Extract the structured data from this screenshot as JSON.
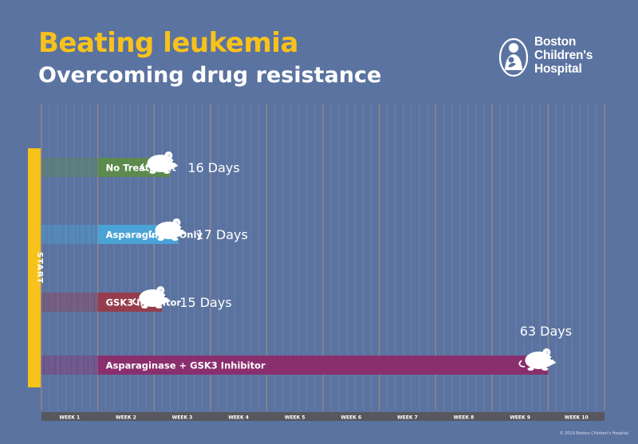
{
  "header": {
    "title": "Beating leukemia",
    "subtitle": "Overcoming drug resistance"
  },
  "logo": {
    "lines": [
      "Boston",
      "Children's",
      "Hospital"
    ]
  },
  "copyright": "© 2019 Boston Children's Hospital",
  "colors": {
    "background": "#5b73a0",
    "title": "#f7c21b",
    "start_bar": "#f7c21b",
    "axis_band": "#58575d"
  },
  "chart_data": {
    "type": "bar",
    "orientation": "horizontal",
    "start_label": "START",
    "x_unit": "weeks",
    "xlim": [
      0,
      10
    ],
    "week_labels": [
      "WEEK 1",
      "WEEK 2",
      "WEEK 3",
      "WEEK 4",
      "WEEK 5",
      "WEEK 6",
      "WEEK 7",
      "WEEK 8",
      "WEEK 9",
      "WEEK 10"
    ],
    "series": [
      {
        "name": "No Treatment",
        "value_days": 16,
        "value_label": "16 Days",
        "color": "#5d8b4d"
      },
      {
        "name": "Asparaginase Only",
        "value_days": 17,
        "value_label": "17 Days",
        "color": "#4aa3d6"
      },
      {
        "name": "GSK3 Inhibitor",
        "value_days": 15,
        "value_label": "15 Days",
        "color": "#963d4d"
      },
      {
        "name": "Asparaginase + GSK3 Inhibitor",
        "value_days": 63,
        "value_label": "63 Days",
        "color": "#8a2f6e"
      }
    ],
    "marker_icon": "mouse-icon",
    "grid": true
  }
}
